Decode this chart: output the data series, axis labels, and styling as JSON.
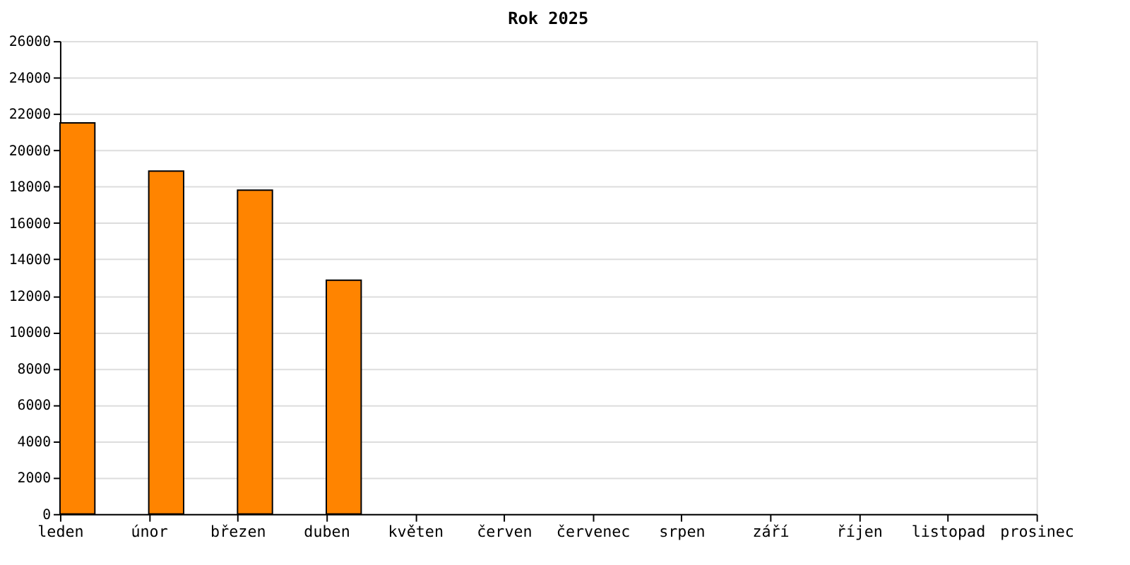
{
  "chart_data": {
    "type": "bar",
    "title": "Rok 2025",
    "categories": [
      "leden",
      "únor",
      "březen",
      "duben",
      "květen",
      "červen",
      "červenec",
      "srpen",
      "září",
      "říjen",
      "listopad",
      "prosinec"
    ],
    "values": [
      21500,
      18850,
      17800,
      12850,
      null,
      null,
      null,
      null,
      null,
      null,
      null,
      null
    ],
    "color": "#ff8400",
    "ylim": [
      0,
      26000
    ],
    "yticks": [
      0,
      2000,
      4000,
      6000,
      8000,
      10000,
      12000,
      14000,
      16000,
      18000,
      20000,
      22000,
      24000,
      26000
    ],
    "grid": "y"
  }
}
